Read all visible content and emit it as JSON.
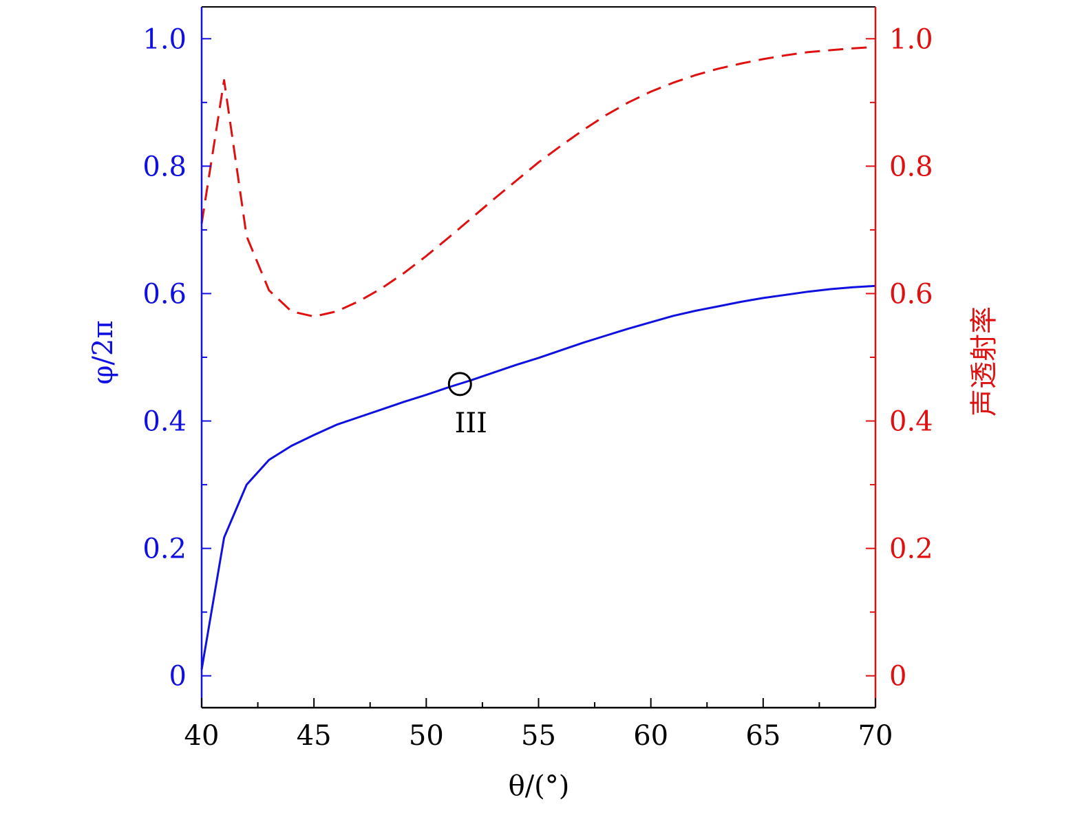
{
  "chart_data": {
    "type": "line",
    "x_axis": {
      "label": "θ/(°)",
      "range": [
        40,
        70
      ],
      "ticks": [
        40,
        45,
        50,
        55,
        60,
        65,
        70
      ],
      "tick_labels": [
        "40",
        "45",
        "50",
        "55",
        "60",
        "65",
        "70"
      ],
      "color": "#000000"
    },
    "y_left": {
      "label": "φ/2π",
      "range": [
        -0.05,
        1.05
      ],
      "ticks": [
        0,
        0.2,
        0.4,
        0.6,
        0.8,
        1.0
      ],
      "tick_labels": [
        "0",
        "0.2",
        "0.4",
        "0.6",
        "0.8",
        "1.0"
      ],
      "color": "#1010e0"
    },
    "y_right": {
      "label": "声透射率",
      "range": [
        -0.05,
        1.05
      ],
      "ticks": [
        0,
        0.2,
        0.4,
        0.6,
        0.8,
        1.0
      ],
      "tick_labels": [
        "0",
        "0.2",
        "0.4",
        "0.6",
        "0.8",
        "1.0"
      ],
      "color": "#e01010"
    },
    "series": [
      {
        "axis": "left",
        "style": "solid",
        "color": "#1010e0",
        "x": [
          40,
          41,
          42,
          43,
          44,
          45,
          46,
          47,
          48,
          49,
          50,
          51,
          52,
          53,
          54,
          55,
          56,
          57,
          58,
          59,
          60,
          61,
          62,
          63,
          64,
          65,
          66,
          67,
          68,
          69,
          70
        ],
        "y": [
          0.01,
          0.217,
          0.3,
          0.339,
          0.361,
          0.378,
          0.394,
          0.406,
          0.418,
          0.43,
          0.441,
          0.453,
          0.464,
          0.476,
          0.488,
          0.499,
          0.511,
          0.523,
          0.534,
          0.545,
          0.555,
          0.565,
          0.573,
          0.58,
          0.587,
          0.593,
          0.598,
          0.603,
          0.607,
          0.61,
          0.612
        ]
      },
      {
        "axis": "right",
        "style": "dashed",
        "color": "#e01010",
        "x": [
          40,
          41,
          42,
          43,
          44,
          45,
          46,
          47,
          48,
          49,
          50,
          51,
          52,
          53,
          54,
          55,
          56,
          57,
          58,
          59,
          60,
          61,
          62,
          63,
          64,
          65,
          66,
          67,
          68,
          69,
          70
        ],
        "y": [
          0.71,
          0.935,
          0.69,
          0.605,
          0.572,
          0.564,
          0.572,
          0.588,
          0.608,
          0.632,
          0.659,
          0.688,
          0.718,
          0.748,
          0.777,
          0.806,
          0.832,
          0.857,
          0.88,
          0.9,
          0.917,
          0.931,
          0.943,
          0.953,
          0.961,
          0.968,
          0.974,
          0.979,
          0.982,
          0.985,
          0.987
        ]
      }
    ],
    "annotations": [
      {
        "text": "III",
        "marker": "circle",
        "x": 51.5,
        "y": 0.458
      }
    ]
  }
}
